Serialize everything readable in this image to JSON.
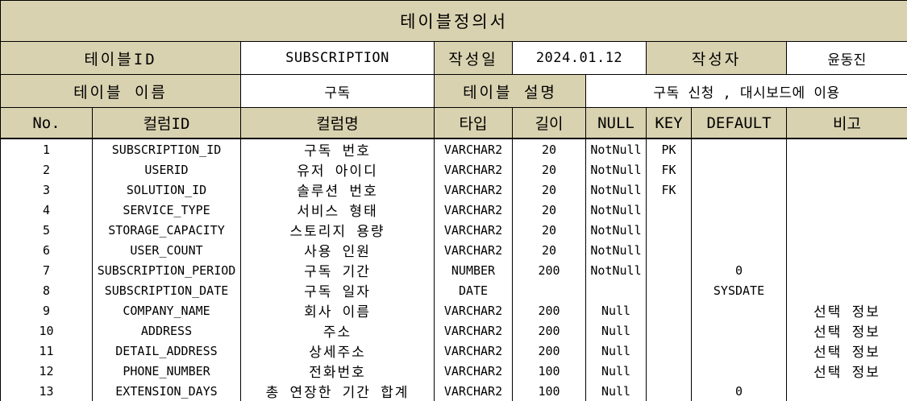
{
  "doc_title": "테이블정의서",
  "meta": {
    "table_id_label": "테이블ID",
    "table_id": "SUBSCRIPTION",
    "date_label": "작성일",
    "date": "2024.01.12",
    "author_label": "작성자",
    "author": "윤동진",
    "table_name_label": "테이블 이름",
    "table_name": "구독",
    "table_desc_label": "테이블 설명",
    "table_desc": "구독 신청 , 대시보드에 이용"
  },
  "columns": [
    "No.",
    "컬럼ID",
    "컬럼명",
    "타입",
    "길이",
    "NULL",
    "KEY",
    "DEFAULT",
    "비고"
  ],
  "rows": [
    [
      "1",
      "SUBSCRIPTION_ID",
      "구독 번호",
      "VARCHAR2",
      "20",
      "NotNull",
      "PK",
      "",
      ""
    ],
    [
      "2",
      "USERID",
      "유저 아이디",
      "VARCHAR2",
      "20",
      "NotNull",
      "FK",
      "",
      ""
    ],
    [
      "3",
      "SOLUTION_ID",
      "솔루션 번호",
      "VARCHAR2",
      "20",
      "NotNull",
      "FK",
      "",
      ""
    ],
    [
      "4",
      "SERVICE_TYPE",
      "서비스 형태",
      "VARCHAR2",
      "20",
      "NotNull",
      "",
      "",
      ""
    ],
    [
      "5",
      "STORAGE_CAPACITY",
      "스토리지 용량",
      "VARCHAR2",
      "20",
      "NotNull",
      "",
      "",
      ""
    ],
    [
      "6",
      "USER_COUNT",
      "사용 인원",
      "VARCHAR2",
      "20",
      "NotNull",
      "",
      "",
      ""
    ],
    [
      "7",
      "SUBSCRIPTION_PERIOD",
      "구독 기간",
      "NUMBER",
      "200",
      "NotNull",
      "",
      "0",
      ""
    ],
    [
      "8",
      "SUBSCRIPTION_DATE",
      "구독 일자",
      "DATE",
      "",
      "",
      "",
      "SYSDATE",
      ""
    ],
    [
      "9",
      "COMPANY_NAME",
      "회사 이름",
      "VARCHAR2",
      "200",
      "Null",
      "",
      "",
      "선택 정보"
    ],
    [
      "10",
      "ADDRESS",
      "주소",
      "VARCHAR2",
      "200",
      "Null",
      "",
      "",
      "선택 정보"
    ],
    [
      "11",
      "DETAIL_ADDRESS",
      "상세주소",
      "VARCHAR2",
      "200",
      "Null",
      "",
      "",
      "선택 정보"
    ],
    [
      "12",
      "PHONE_NUMBER",
      "전화번호",
      "VARCHAR2",
      "100",
      "Null",
      "",
      "",
      "선택 정보"
    ],
    [
      "13",
      "EXTENSION_DAYS",
      "총 연장한 기간 합계",
      "VARCHAR2",
      "100",
      "Null",
      "",
      "0",
      ""
    ]
  ]
}
